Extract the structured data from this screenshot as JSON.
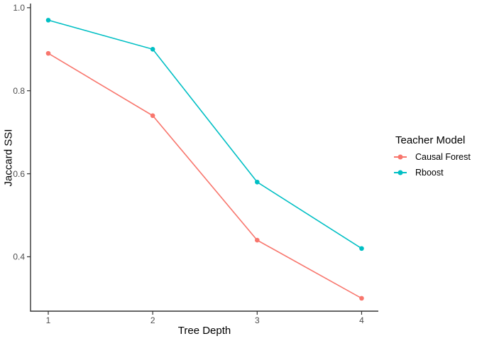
{
  "chart_data": {
    "type": "line",
    "title": "",
    "xlabel": "Tree Depth",
    "ylabel": "Jaccard SSI",
    "x": [
      1,
      2,
      3,
      4
    ],
    "xticks": [
      1,
      2,
      3,
      4
    ],
    "xtick_labels": [
      "1",
      "2",
      "3",
      "4"
    ],
    "yticks": [
      0.4,
      0.6,
      0.8,
      1.0
    ],
    "ytick_labels": [
      "0.4",
      "0.6",
      "0.8",
      "1.0"
    ],
    "xlim": [
      0.83,
      4.16
    ],
    "ylim": [
      0.269,
      1.01
    ],
    "grid": false,
    "legend": {
      "title": "Teacher Model",
      "position": "right",
      "entries": [
        "Causal Forest",
        "Rboost"
      ]
    },
    "series": [
      {
        "name": "Causal Forest",
        "color": "#F8766D",
        "values": [
          0.89,
          0.74,
          0.44,
          0.3
        ]
      },
      {
        "name": "Rboost",
        "color": "#00BFC4",
        "values": [
          0.97,
          0.9,
          0.58,
          0.42
        ]
      }
    ],
    "colors": {
      "background": "#ffffff",
      "axis_line": "#333333",
      "tick_label": "#4d4d4d",
      "axis_title": "#000000"
    }
  }
}
